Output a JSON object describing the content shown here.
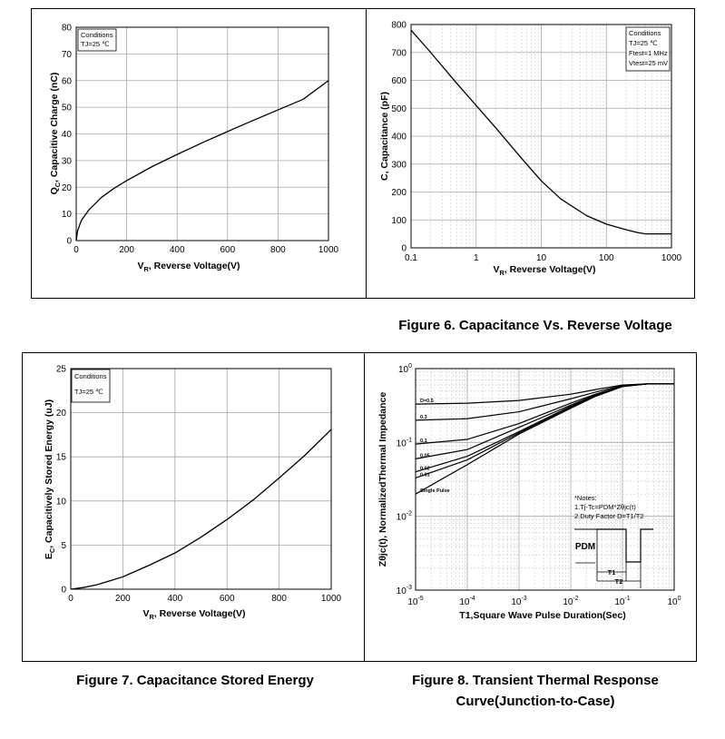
{
  "colors": {
    "grid": "#a8a8a8",
    "minor_grid": "#c8c8c8",
    "curve": "#000000"
  },
  "chart_data": [
    {
      "id": "qc",
      "type": "line",
      "title": "",
      "xlabel": "V_R,  Reverse Voltage(V)",
      "ylabel": "Q_C, Capacitive Charge (nC)",
      "xlim": [
        0,
        1000
      ],
      "ylim": [
        0,
        80
      ],
      "xticks": [
        "0",
        "200",
        "400",
        "600",
        "800",
        "1000"
      ],
      "yticks": [
        "0",
        "10",
        "20",
        "30",
        "40",
        "50",
        "60",
        "70",
        "80"
      ],
      "grid": true,
      "annotation": [
        "Conditions",
        "TJ=25 ℃"
      ],
      "series": [
        {
          "x": [
            0,
            5,
            20,
            50,
            100,
            150,
            200,
            300,
            400,
            500,
            600,
            700,
            800,
            900,
            1000
          ],
          "y": [
            0,
            3.5,
            7.5,
            11.5,
            16.2,
            19.6,
            22.5,
            27.7,
            32.3,
            36.7,
            40.9,
            45.0,
            49.0,
            53.0,
            60.0
          ]
        }
      ]
    },
    {
      "id": "cap",
      "type": "line",
      "title": "",
      "xlabel": "V_R, Reverse Voltage(V)",
      "ylabel": "C, Capacitance (pF)",
      "xscale": "log",
      "xlim": [
        0.1,
        1000
      ],
      "ylim": [
        0,
        800
      ],
      "xticks": [
        "0.1",
        "1",
        "10",
        "100",
        "1000"
      ],
      "yticks": [
        "0",
        "100",
        "200",
        "300",
        "400",
        "500",
        "600",
        "700",
        "800"
      ],
      "grid": true,
      "annotation": [
        "Conditions",
        "TJ=25 ℃",
        "Ftest=1 MHz",
        "Vtest=25 mV"
      ],
      "series": [
        {
          "x": [
            0.1,
            0.2,
            0.5,
            1,
            2,
            5,
            10,
            20,
            50,
            100,
            200,
            300,
            400,
            700,
            1000
          ],
          "y": [
            780,
            700,
            590,
            510,
            430,
            320,
            240,
            175,
            115,
            85,
            65,
            55,
            50,
            50,
            50
          ]
        }
      ]
    },
    {
      "id": "ec",
      "type": "line",
      "title": "",
      "xlabel": "V_R,  Reverse Voltage(V)",
      "ylabel": "E_C, Capacitively Stored Energy (uJ)",
      "xlim": [
        0,
        1000
      ],
      "ylim": [
        0,
        25
      ],
      "xticks": [
        "0",
        "200",
        "400",
        "600",
        "800",
        "1000"
      ],
      "yticks": [
        "0",
        "5",
        "10",
        "15",
        "20",
        "25"
      ],
      "grid": true,
      "annotation": [
        "Conditions",
        "TJ=25 ℃"
      ],
      "series": [
        {
          "x": [
            0,
            50,
            100,
            200,
            300,
            400,
            500,
            600,
            700,
            800,
            900,
            1000
          ],
          "y": [
            0,
            0.2,
            0.5,
            1.4,
            2.7,
            4.1,
            5.9,
            7.9,
            10.1,
            12.6,
            15.2,
            18.1
          ]
        }
      ]
    },
    {
      "id": "zth",
      "type": "line",
      "title": "",
      "xlabel": "T1,Square Wave Pulse Duration(Sec)",
      "ylabel": "Zθjc(t), NormalizedThermal Impedance",
      "xscale": "log",
      "yscale": "log",
      "xlim": [
        1e-05,
        1
      ],
      "ylim": [
        0.001,
        1
      ],
      "xticks": [
        "10^-5",
        "10^-4",
        "10^-3",
        "10^-2",
        "10^-1",
        "10^0"
      ],
      "yticks": [
        "10^-3",
        "10^-2",
        "10^-1",
        "10^0"
      ],
      "grid": true,
      "notes": [
        "*Notes:",
        "1.Tj-Tc=PDM*Zθjc(t)",
        "2.Duty Factor D=T1/T2"
      ],
      "inset_labels": {
        "pdm": "PDM",
        "t1": "T1",
        "t2": "T2"
      },
      "series": [
        {
          "name": "D=0.5",
          "x": [
            1e-05,
            0.0001,
            0.001,
            0.01,
            0.03,
            0.1,
            0.3,
            1
          ],
          "y": [
            0.33,
            0.34,
            0.37,
            0.45,
            0.52,
            0.6,
            0.62,
            0.62
          ]
        },
        {
          "name": "0.3",
          "x": [
            1e-05,
            0.0001,
            0.001,
            0.01,
            0.03,
            0.1,
            0.3,
            1
          ],
          "y": [
            0.2,
            0.21,
            0.26,
            0.39,
            0.48,
            0.59,
            0.62,
            0.62
          ]
        },
        {
          "name": "0.1",
          "x": [
            1e-05,
            0.0001,
            0.001,
            0.01,
            0.03,
            0.1,
            0.3,
            1
          ],
          "y": [
            0.095,
            0.11,
            0.18,
            0.34,
            0.45,
            0.58,
            0.62,
            0.62
          ]
        },
        {
          "name": "0.05",
          "x": [
            1e-05,
            0.0001,
            0.001,
            0.01,
            0.03,
            0.1,
            0.3,
            1
          ],
          "y": [
            0.06,
            0.08,
            0.16,
            0.32,
            0.44,
            0.58,
            0.62,
            0.62
          ]
        },
        {
          "name": "0.02",
          "x": [
            1e-05,
            0.0001,
            0.001,
            0.01,
            0.03,
            0.1,
            0.3,
            1
          ],
          "y": [
            0.04,
            0.065,
            0.14,
            0.31,
            0.43,
            0.58,
            0.62,
            0.62
          ]
        },
        {
          "name": "0.01",
          "x": [
            1e-05,
            0.0001,
            0.001,
            0.01,
            0.03,
            0.1,
            0.3,
            1
          ],
          "y": [
            0.033,
            0.058,
            0.135,
            0.3,
            0.43,
            0.58,
            0.62,
            0.62
          ]
        },
        {
          "name": "Single Pulse",
          "x": [
            1e-05,
            0.0001,
            0.001,
            0.01,
            0.03,
            0.1,
            0.3,
            1
          ],
          "y": [
            0.02,
            0.05,
            0.13,
            0.29,
            0.42,
            0.57,
            0.62,
            0.62
          ]
        }
      ]
    }
  ],
  "captions": {
    "fig6": "Figure 6. Capacitance Vs. Reverse Voltage",
    "fig7": "Figure 7. Capacitance Stored Energy",
    "fig8_line1": "Figure 8. Transient Thermal Response",
    "fig8_line2": "Curve(Junction-to-Case)"
  }
}
